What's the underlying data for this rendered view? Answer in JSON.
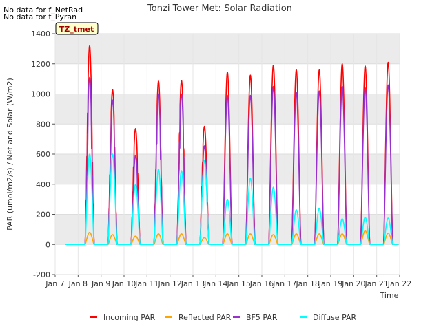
{
  "notes": [
    "No data for f_NetRad",
    "No data for f_Pyran"
  ],
  "badge": "TZ_tmet",
  "colors": {
    "incoming": "#ff0000",
    "reflected": "#ffa500",
    "bf5": "#9932cc",
    "diffuse": "#00ffff",
    "band": "#ebebeb",
    "badge_bg": "#ffffcc",
    "badge_text": "#a00000"
  },
  "chart_data": {
    "type": "line",
    "title": "Tonzi Tower Met: Solar Radiation",
    "xlabel": "Time",
    "ylabel": "PAR (umol/m2/s) / Net and Solar (W/m2)",
    "xlim": [
      7,
      22
    ],
    "ylim": [
      -200,
      1400
    ],
    "x_ticks": [
      7,
      8,
      9,
      10,
      11,
      12,
      13,
      14,
      15,
      16,
      17,
      18,
      19,
      20,
      21,
      22
    ],
    "x_tick_labels": [
      "Jan 7",
      "Jan 8",
      "Jan 9",
      "Jan 10",
      "Jan 11",
      "Jan 12",
      "Jan 13",
      "Jan 14",
      "Jan 15",
      "Jan 16",
      "Jan 17",
      "Jan 18",
      "Jan 19",
      "Jan 20",
      "Jan 21",
      "Jan 22"
    ],
    "y_ticks": [
      -200,
      0,
      200,
      400,
      600,
      800,
      1000,
      1200,
      1400
    ],
    "grid": true,
    "legend_position": "bottom",
    "series": [
      {
        "name": "Incoming PAR",
        "key": "incoming",
        "daily_peak": [
          1320,
          1030,
          770,
          1085,
          1090,
          785,
          1145,
          1125,
          1190,
          1160,
          1160,
          1200,
          1185,
          1210
        ]
      },
      {
        "name": "Reflected PAR",
        "key": "reflected",
        "daily_peak": [
          80,
          65,
          55,
          70,
          70,
          45,
          70,
          70,
          65,
          70,
          70,
          70,
          90,
          75
        ]
      },
      {
        "name": "BF5 PAR",
        "key": "bf5",
        "daily_peak": [
          1110,
          960,
          590,
          1000,
          1000,
          655,
          990,
          990,
          1050,
          1010,
          1020,
          1050,
          1040,
          1060
        ]
      },
      {
        "name": "Diffuse PAR",
        "key": "diffuse",
        "daily_peak": [
          600,
          600,
          400,
          500,
          490,
          560,
          300,
          440,
          380,
          230,
          240,
          170,
          180,
          175
        ]
      }
    ],
    "daily_peak_days": [
      8,
      9,
      10,
      11,
      12,
      13,
      14,
      15,
      16,
      17,
      18,
      19,
      20,
      21
    ]
  }
}
